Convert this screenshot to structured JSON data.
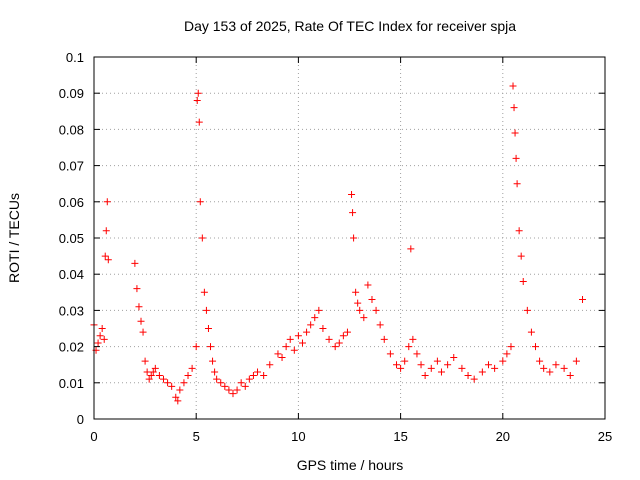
{
  "chart_data": {
    "type": "scatter",
    "title": "Day 153 of 2025, Rate Of TEC Index for receiver spja",
    "xlabel": "GPS time / hours",
    "ylabel": "ROTI / TECUs",
    "xlim": [
      0,
      25
    ],
    "ylim": [
      0,
      0.1
    ],
    "x_ticks": [
      "0",
      "5",
      "10",
      "15",
      "20",
      "25"
    ],
    "y_ticks": [
      "0",
      "0.01",
      "0.02",
      "0.03",
      "0.04",
      "0.05",
      "0.06",
      "0.07",
      "0.08",
      "0.09",
      "0.1"
    ],
    "x_tick_values": [
      0,
      5,
      10,
      15,
      20,
      25
    ],
    "y_tick_values": [
      0,
      0.01,
      0.02,
      0.03,
      0.04,
      0.05,
      0.06,
      0.07,
      0.08,
      0.09,
      0.1
    ],
    "grid": true,
    "marker": "plus",
    "marker_color": "#ff0000",
    "series": [
      {
        "x": [
          0.0,
          0.1,
          0.2,
          0.3,
          0.4,
          0.5,
          0.55,
          0.6,
          0.65,
          0.7,
          2.0,
          2.1,
          2.2,
          2.3,
          2.4,
          2.5,
          2.6,
          2.7,
          2.8,
          2.9,
          3.0,
          3.2,
          3.4,
          3.6,
          3.8,
          4.0,
          4.1,
          4.2,
          4.4,
          4.6,
          4.8,
          5.0,
          5.05,
          5.1,
          5.15,
          5.2,
          5.3,
          5.4,
          5.5,
          5.6,
          5.7,
          5.8,
          5.9,
          6.0,
          6.2,
          6.4,
          6.6,
          6.8,
          7.0,
          7.2,
          7.4,
          7.6,
          7.8,
          8.0,
          8.3,
          8.6,
          9.0,
          9.2,
          9.4,
          9.6,
          9.8,
          10.0,
          10.2,
          10.4,
          10.6,
          10.8,
          11.0,
          11.2,
          11.5,
          11.8,
          12.0,
          12.2,
          12.4,
          12.6,
          12.65,
          12.7,
          12.8,
          12.9,
          13.0,
          13.2,
          13.4,
          13.6,
          13.8,
          14.0,
          14.2,
          14.5,
          14.8,
          15.0,
          15.2,
          15.4,
          15.5,
          15.6,
          15.8,
          16.0,
          16.2,
          16.5,
          16.8,
          17.0,
          17.3,
          17.6,
          18.0,
          18.3,
          18.6,
          19.0,
          19.3,
          19.6,
          20.0,
          20.2,
          20.4,
          20.5,
          20.55,
          20.6,
          20.65,
          20.7,
          20.8,
          20.9,
          21.0,
          21.2,
          21.4,
          21.6,
          21.8,
          22.0,
          22.3,
          22.6,
          23.0,
          23.3,
          23.6,
          23.9
        ],
        "y": [
          0.026,
          0.019,
          0.021,
          0.023,
          0.025,
          0.022,
          0.045,
          0.052,
          0.06,
          0.044,
          0.043,
          0.036,
          0.031,
          0.027,
          0.024,
          0.016,
          0.013,
          0.011,
          0.012,
          0.013,
          0.014,
          0.012,
          0.011,
          0.01,
          0.009,
          0.006,
          0.005,
          0.008,
          0.01,
          0.012,
          0.014,
          0.02,
          0.088,
          0.09,
          0.082,
          0.06,
          0.05,
          0.035,
          0.03,
          0.025,
          0.02,
          0.016,
          0.013,
          0.011,
          0.01,
          0.009,
          0.008,
          0.007,
          0.008,
          0.01,
          0.009,
          0.011,
          0.012,
          0.013,
          0.012,
          0.015,
          0.018,
          0.017,
          0.02,
          0.022,
          0.019,
          0.023,
          0.021,
          0.024,
          0.026,
          0.028,
          0.03,
          0.025,
          0.022,
          0.02,
          0.021,
          0.023,
          0.024,
          0.062,
          0.057,
          0.05,
          0.035,
          0.032,
          0.03,
          0.028,
          0.037,
          0.033,
          0.03,
          0.026,
          0.022,
          0.018,
          0.015,
          0.014,
          0.016,
          0.02,
          0.047,
          0.022,
          0.018,
          0.015,
          0.012,
          0.014,
          0.016,
          0.013,
          0.015,
          0.017,
          0.014,
          0.012,
          0.011,
          0.013,
          0.015,
          0.014,
          0.016,
          0.018,
          0.02,
          0.092,
          0.086,
          0.079,
          0.072,
          0.065,
          0.052,
          0.045,
          0.038,
          0.03,
          0.024,
          0.02,
          0.016,
          0.014,
          0.013,
          0.015,
          0.014,
          0.012,
          0.016,
          0.033
        ]
      }
    ]
  }
}
